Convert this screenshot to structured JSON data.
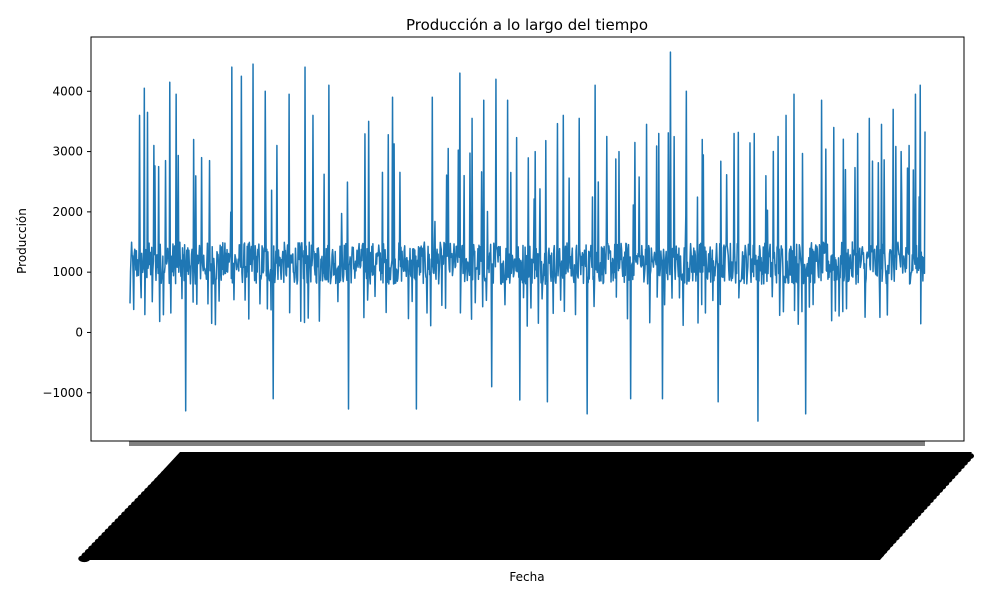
{
  "chart_data": {
    "type": "line",
    "title": "Producción a lo largo del tiempo",
    "xlabel": "Fecha",
    "ylabel": "Producción",
    "ylim": [
      -1800,
      4900
    ],
    "yticks": [
      -1000,
      0,
      1000,
      2000,
      3000,
      4000
    ],
    "grid": false,
    "legend": "none",
    "x_tick_labels_note": "",
    "series": [
      {
        "color": "#1f77b4",
        "baseline_range": [
          800,
          1500
        ],
        "high_spikes": [
          {
            "i": 0.012,
            "v": 3600
          },
          {
            "i": 0.018,
            "v": 4050
          },
          {
            "i": 0.022,
            "v": 3650
          },
          {
            "i": 0.03,
            "v": 3100
          },
          {
            "i": 0.036,
            "v": 2750
          },
          {
            "i": 0.045,
            "v": 2850
          },
          {
            "i": 0.05,
            "v": 4150
          },
          {
            "i": 0.058,
            "v": 3950
          },
          {
            "i": 0.07,
            "v": 4400
          },
          {
            "i": 0.08,
            "v": 3200
          },
          {
            "i": 0.09,
            "v": 2900
          },
          {
            "i": 0.1,
            "v": 2850
          },
          {
            "i": 0.128,
            "v": 4400
          },
          {
            "i": 0.14,
            "v": 4250
          },
          {
            "i": 0.155,
            "v": 4450
          },
          {
            "i": 0.17,
            "v": 4000
          },
          {
            "i": 0.185,
            "v": 3100
          },
          {
            "i": 0.2,
            "v": 3950
          },
          {
            "i": 0.22,
            "v": 4400
          },
          {
            "i": 0.23,
            "v": 3600
          },
          {
            "i": 0.25,
            "v": 4100
          },
          {
            "i": 0.275,
            "v": 3700
          },
          {
            "i": 0.3,
            "v": 3500
          },
          {
            "i": 0.33,
            "v": 3900
          },
          {
            "i": 0.36,
            "v": 3450
          },
          {
            "i": 0.38,
            "v": 3900
          },
          {
            "i": 0.4,
            "v": 3050
          },
          {
            "i": 0.415,
            "v": 4300
          },
          {
            "i": 0.43,
            "v": 3550
          },
          {
            "i": 0.445,
            "v": 3850
          },
          {
            "i": 0.46,
            "v": 4200
          },
          {
            "i": 0.475,
            "v": 3850
          },
          {
            "i": 0.49,
            "v": 3150
          },
          {
            "i": 0.51,
            "v": 3000
          },
          {
            "i": 0.525,
            "v": 3950
          },
          {
            "i": 0.545,
            "v": 3600
          },
          {
            "i": 0.565,
            "v": 3550
          },
          {
            "i": 0.585,
            "v": 4100
          },
          {
            "i": 0.6,
            "v": 3250
          },
          {
            "i": 0.615,
            "v": 3000
          },
          {
            "i": 0.635,
            "v": 3150
          },
          {
            "i": 0.65,
            "v": 3450
          },
          {
            "i": 0.665,
            "v": 3300
          },
          {
            "i": 0.68,
            "v": 4650
          },
          {
            "i": 0.7,
            "v": 4000
          },
          {
            "i": 0.72,
            "v": 3200
          },
          {
            "i": 0.74,
            "v": 3800
          },
          {
            "i": 0.76,
            "v": 3300
          },
          {
            "i": 0.785,
            "v": 3300
          },
          {
            "i": 0.8,
            "v": 2600
          },
          {
            "i": 0.815,
            "v": 3250
          },
          {
            "i": 0.825,
            "v": 3600
          },
          {
            "i": 0.835,
            "v": 3950
          },
          {
            "i": 0.85,
            "v": 4150
          },
          {
            "i": 0.87,
            "v": 3850
          },
          {
            "i": 0.885,
            "v": 3400
          },
          {
            "i": 0.9,
            "v": 2700
          },
          {
            "i": 0.915,
            "v": 3300
          },
          {
            "i": 0.93,
            "v": 3550
          },
          {
            "i": 0.945,
            "v": 3450
          },
          {
            "i": 0.96,
            "v": 3700
          },
          {
            "i": 0.97,
            "v": 3000
          },
          {
            "i": 0.98,
            "v": 3100
          },
          {
            "i": 0.988,
            "v": 3950
          },
          {
            "i": 0.994,
            "v": 4100
          }
        ],
        "low_spikes": [
          {
            "i": 0.07,
            "v": -1300
          },
          {
            "i": 0.18,
            "v": -1100
          },
          {
            "i": 0.275,
            "v": -1270
          },
          {
            "i": 0.36,
            "v": -1270
          },
          {
            "i": 0.455,
            "v": -900
          },
          {
            "i": 0.49,
            "v": -1120
          },
          {
            "i": 0.525,
            "v": -1150
          },
          {
            "i": 0.575,
            "v": -1350
          },
          {
            "i": 0.63,
            "v": -1100
          },
          {
            "i": 0.67,
            "v": -1100
          },
          {
            "i": 0.74,
            "v": -1150
          },
          {
            "i": 0.79,
            "v": -1470
          },
          {
            "i": 0.85,
            "v": -1350
          }
        ]
      }
    ]
  }
}
